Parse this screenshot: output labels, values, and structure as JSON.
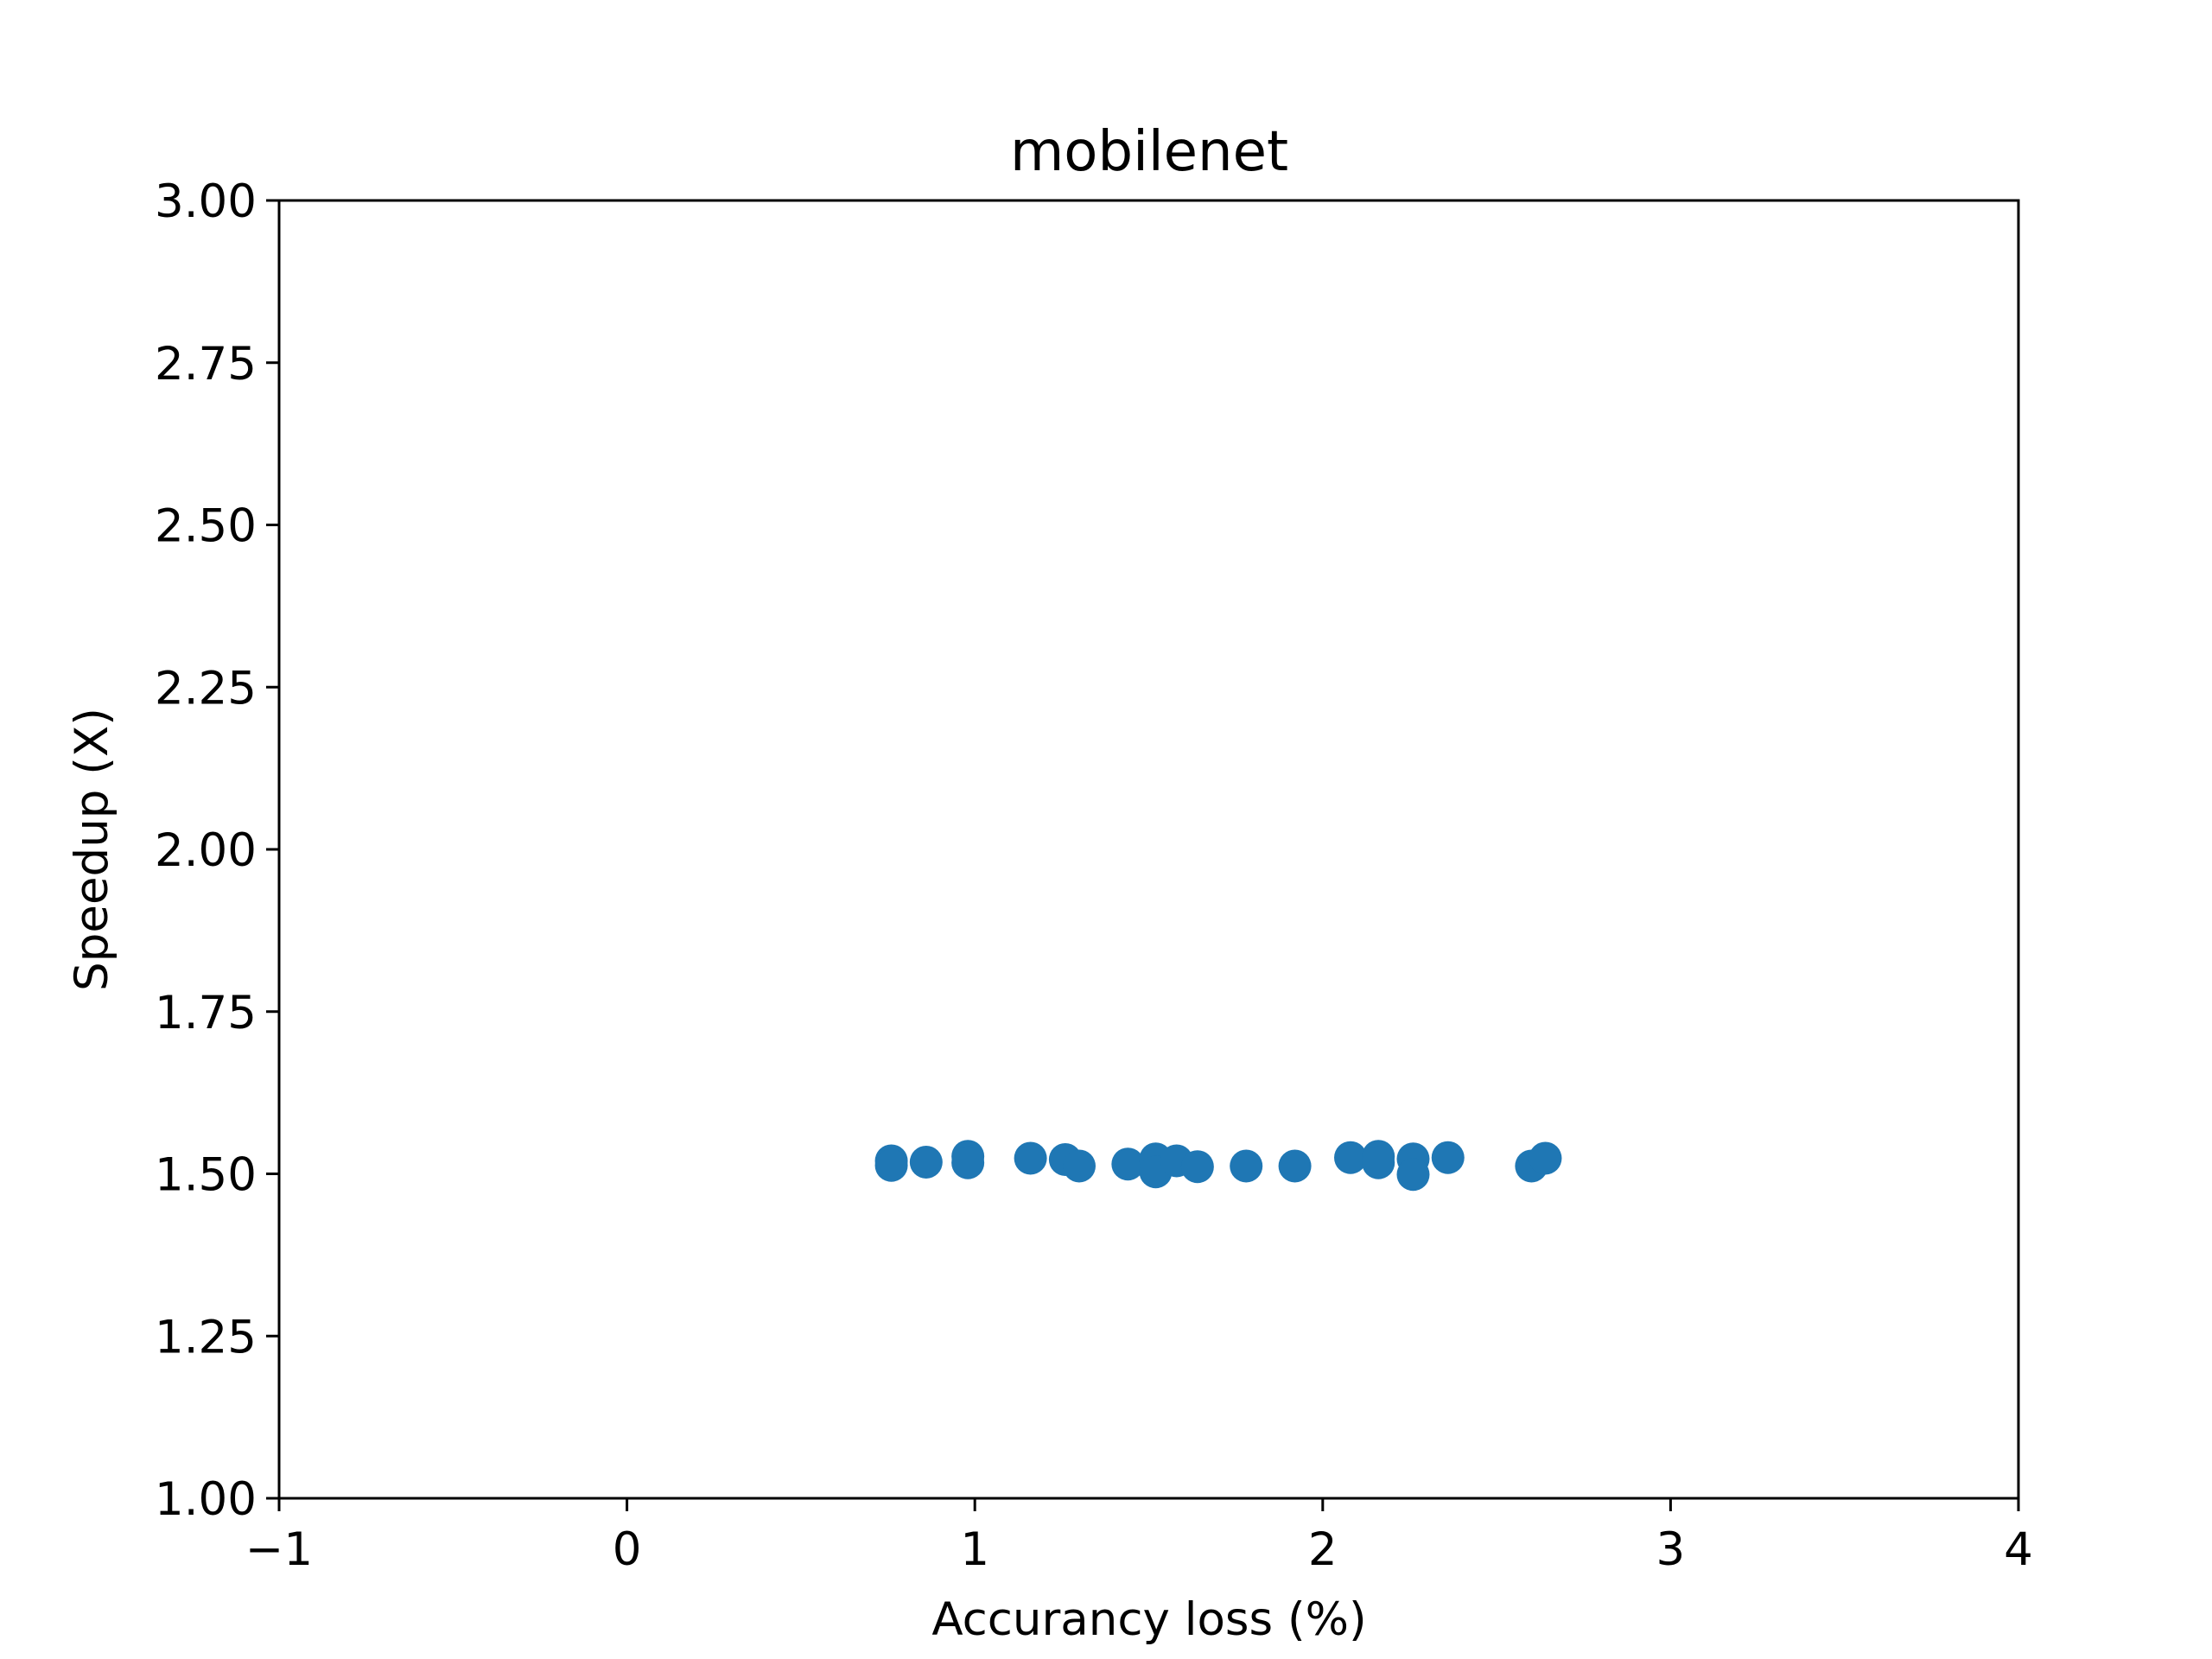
{
  "chart_data": {
    "type": "scatter",
    "title": "mobilenet",
    "xlabel": "Accurancy loss (%)",
    "ylabel": "Speedup (X)",
    "xlim": [
      -1,
      4
    ],
    "ylim": [
      1.0,
      3.0
    ],
    "xticks": [
      -1,
      0,
      1,
      2,
      3,
      4
    ],
    "xtick_labels": [
      "−1",
      "0",
      "1",
      "2",
      "3",
      "4"
    ],
    "yticks": [
      1.0,
      1.25,
      1.5,
      1.75,
      2.0,
      2.25,
      2.5,
      2.75,
      3.0
    ],
    "ytick_labels": [
      "1.00",
      "1.25",
      "1.50",
      "1.75",
      "2.00",
      "2.25",
      "2.50",
      "2.75",
      "3.00"
    ],
    "grid": false,
    "series": [
      {
        "color": "#1f77b4",
        "points": [
          {
            "x": 0.76,
            "y": 1.52
          },
          {
            "x": 0.76,
            "y": 1.513
          },
          {
            "x": 0.86,
            "y": 1.518
          },
          {
            "x": 0.98,
            "y": 1.527
          },
          {
            "x": 0.98,
            "y": 1.517
          },
          {
            "x": 1.16,
            "y": 1.524
          },
          {
            "x": 1.26,
            "y": 1.522
          },
          {
            "x": 1.3,
            "y": 1.512
          },
          {
            "x": 1.44,
            "y": 1.515
          },
          {
            "x": 1.52,
            "y": 1.523
          },
          {
            "x": 1.52,
            "y": 1.503
          },
          {
            "x": 1.58,
            "y": 1.52
          },
          {
            "x": 1.64,
            "y": 1.511
          },
          {
            "x": 1.78,
            "y": 1.512
          },
          {
            "x": 1.92,
            "y": 1.512
          },
          {
            "x": 2.08,
            "y": 1.525
          },
          {
            "x": 2.16,
            "y": 1.527
          },
          {
            "x": 2.16,
            "y": 1.517
          },
          {
            "x": 2.26,
            "y": 1.523
          },
          {
            "x": 2.26,
            "y": 1.499
          },
          {
            "x": 2.36,
            "y": 1.525
          },
          {
            "x": 2.6,
            "y": 1.512
          },
          {
            "x": 2.64,
            "y": 1.524
          }
        ]
      }
    ]
  }
}
